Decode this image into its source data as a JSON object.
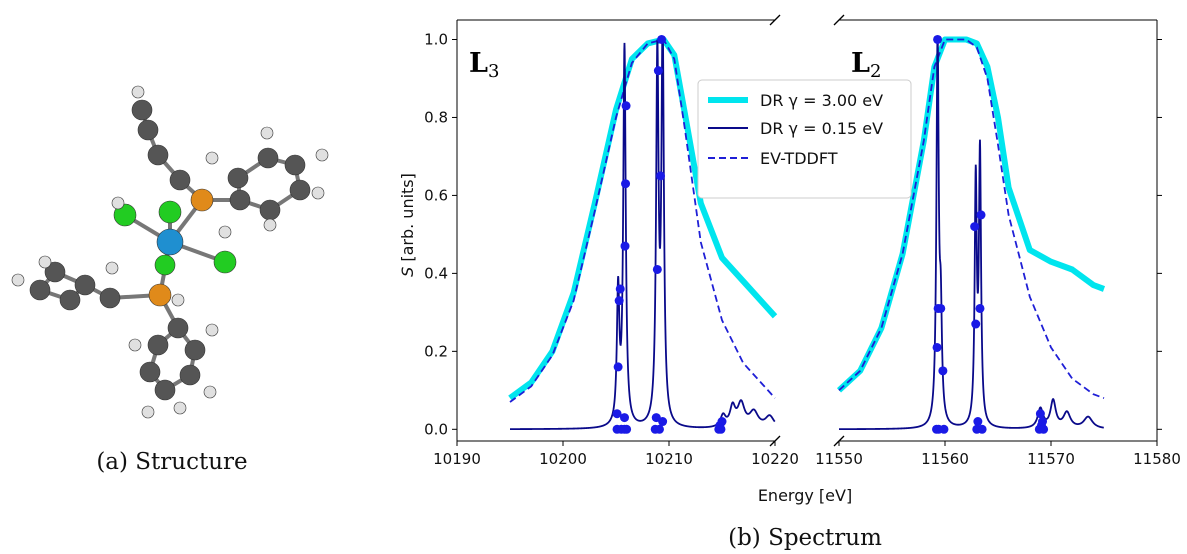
{
  "panel_a": {
    "caption": "(a) Structure"
  },
  "panel_b": {
    "caption": "(b) Spectrum"
  },
  "colors": {
    "dr_wide": "#00e5ee",
    "dr_narrow": "#0a0a8a",
    "ev": "#1f1fd6",
    "markers": "#1a1ae6",
    "atom_C": "#555555",
    "atom_H": "#e0e0e0",
    "atom_P": "#e08a1a",
    "atom_Cl": "#22cc22",
    "atom_metal": "#1f8fd0"
  },
  "chart_data": {
    "type": "line",
    "xlabel": "Energy [eV]",
    "ylabel_italic": "S",
    "ylabel_rest": " [arb. units]",
    "ylim": [
      -0.03,
      1.05
    ],
    "yticks": [
      "0.0",
      "0.2",
      "0.4",
      "0.6",
      "0.8",
      "1.0"
    ],
    "broken_axis": true,
    "grid": false,
    "legend_position": "center (left of right subplot)",
    "legend": [
      {
        "label": "DR γ = 3.00 eV",
        "style": "thick-cyan"
      },
      {
        "label": "DR γ = 0.15 eV",
        "style": "thin-navy"
      },
      {
        "label": "EV-TDDFT",
        "style": "dashed-blue"
      }
    ],
    "panels": [
      {
        "label_main": "L",
        "label_sub": "3",
        "xlim": [
          10190,
          10220
        ],
        "xticks": [
          "10190",
          "10200",
          "10210",
          "10220"
        ],
        "series": [
          {
            "name": "DR γ = 3.00 eV",
            "x": [
              10195,
              10197,
              10199,
              10201,
              10203,
              10205,
              10206.5,
              10208,
              10209.5,
              10210.5,
              10211.5,
              10213,
              10215,
              10217,
              10219,
              10220
            ],
            "y": [
              0.08,
              0.12,
              0.2,
              0.35,
              0.58,
              0.82,
              0.95,
              0.99,
              1.0,
              0.96,
              0.81,
              0.58,
              0.44,
              0.38,
              0.32,
              0.29
            ]
          },
          {
            "name": "EV-TDDFT",
            "x": [
              10195,
              10197,
              10199,
              10201,
              10203,
              10205,
              10206.5,
              10208,
              10209.5,
              10210.5,
              10211.5,
              10213,
              10215,
              10217,
              10219,
              10220
            ],
            "y": [
              0.07,
              0.11,
              0.19,
              0.33,
              0.56,
              0.8,
              0.94,
              0.99,
              1.0,
              0.95,
              0.77,
              0.48,
              0.28,
              0.17,
              0.11,
              0.08
            ]
          },
          {
            "name": "DR γ = 0.15 eV",
            "peaks": [
              {
                "x": 10205.2,
                "h": 0.34,
                "w": 0.14
              },
              {
                "x": 10205.8,
                "h": 0.97,
                "w": 0.14
              },
              {
                "x": 10208.9,
                "h": 0.93,
                "w": 0.14
              },
              {
                "x": 10209.4,
                "h": 1.0,
                "w": 0.14
              },
              {
                "x": 10215.1,
                "h": 0.03,
                "w": 0.3
              },
              {
                "x": 10216.0,
                "h": 0.05,
                "w": 0.3
              },
              {
                "x": 10216.8,
                "h": 0.06,
                "w": 0.4
              },
              {
                "x": 10218.0,
                "h": 0.04,
                "w": 0.5
              },
              {
                "x": 10219.5,
                "h": 0.03,
                "w": 0.5
              }
            ]
          },
          {
            "name": "markers",
            "x": [
              10205.1,
              10205.1,
              10205.2,
              10205.3,
              10205.4,
              10205.5,
              10205.8,
              10205.8,
              10205.85,
              10205.9,
              10205.95,
              10206.0,
              10208.7,
              10208.8,
              10208.9,
              10209.0,
              10209.1,
              10209.2,
              10209.3,
              10209.4,
              10214.7,
              10214.8,
              10214.9,
              10215.0
            ],
            "y": [
              0.0,
              0.04,
              0.16,
              0.33,
              0.36,
              0.0,
              0.0,
              0.03,
              0.47,
              0.63,
              0.83,
              0.0,
              0.0,
              0.03,
              0.41,
              0.92,
              0.0,
              0.65,
              1.0,
              0.02,
              0.0,
              0.01,
              0.0,
              0.02
            ]
          }
        ]
      },
      {
        "label_main": "L",
        "label_sub": "2",
        "xlim": [
          11550,
          11580
        ],
        "xticks": [
          "11550",
          "11560",
          "11570",
          "11580"
        ],
        "series": [
          {
            "name": "DR γ = 3.00 eV",
            "x": [
              11550,
              11552,
              11554,
              11556,
              11558,
              11559,
              11560,
              11561,
              11562,
              11563,
              11564,
              11565,
              11566,
              11568,
              11570,
              11572,
              11574,
              11575
            ],
            "y": [
              0.1,
              0.15,
              0.26,
              0.45,
              0.74,
              0.93,
              1.0,
              1.0,
              1.0,
              0.99,
              0.93,
              0.8,
              0.62,
              0.46,
              0.43,
              0.41,
              0.37,
              0.36
            ]
          },
          {
            "name": "EV-TDDFT",
            "x": [
              11550,
              11552,
              11554,
              11556,
              11558,
              11559,
              11560,
              11561,
              11562,
              11563,
              11564,
              11565,
              11566,
              11568,
              11570,
              11572,
              11574,
              11575
            ],
            "y": [
              0.1,
              0.15,
              0.26,
              0.45,
              0.74,
              0.93,
              1.0,
              1.0,
              1.0,
              0.98,
              0.9,
              0.73,
              0.55,
              0.34,
              0.21,
              0.13,
              0.09,
              0.08
            ]
          },
          {
            "name": "DR γ = 0.15 eV",
            "peaks": [
              {
                "x": 11559.3,
                "h": 0.99,
                "w": 0.13
              },
              {
                "x": 11559.6,
                "h": 0.25,
                "w": 0.13
              },
              {
                "x": 11562.9,
                "h": 0.62,
                "w": 0.12
              },
              {
                "x": 11563.3,
                "h": 0.69,
                "w": 0.12
              },
              {
                "x": 11569.0,
                "h": 0.05,
                "w": 0.3
              },
              {
                "x": 11570.2,
                "h": 0.07,
                "w": 0.3
              },
              {
                "x": 11571.5,
                "h": 0.04,
                "w": 0.4
              },
              {
                "x": 11573.5,
                "h": 0.03,
                "w": 0.5
              }
            ]
          },
          {
            "name": "markers",
            "x": [
              11559.2,
              11559.25,
              11559.3,
              11559.35,
              11559.4,
              11559.6,
              11559.8,
              11559.9,
              11562.8,
              11562.9,
              11563.0,
              11563.1,
              11563.3,
              11563.4,
              11563.5,
              11568.9,
              11569.0,
              11569.1,
              11569.2,
              11569.3
            ],
            "y": [
              0.0,
              0.21,
              1.0,
              0.31,
              0.0,
              0.31,
              0.15,
              0.0,
              0.52,
              0.27,
              0.0,
              0.02,
              0.31,
              0.55,
              0.0,
              0.0,
              0.04,
              0.01,
              0.02,
              0.0
            ]
          }
        ]
      }
    ]
  }
}
